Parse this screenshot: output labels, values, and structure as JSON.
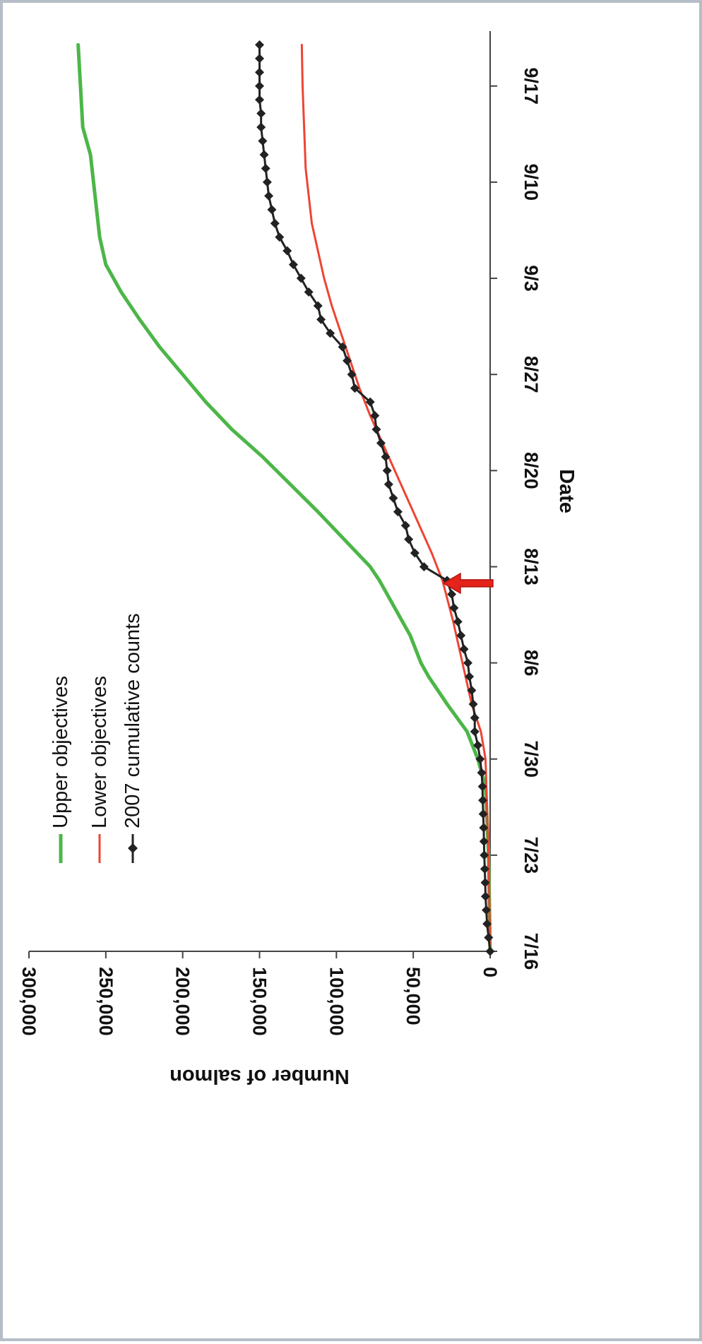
{
  "chart_data": {
    "type": "line",
    "orientation": "rotated-90-clockwise",
    "title": "",
    "xlabel": "Date",
    "ylabel": "Number of salmon",
    "x_ticks": [
      "7/16",
      "7/23",
      "7/30",
      "8/6",
      "8/13",
      "8/20",
      "8/27",
      "9/3",
      "9/10",
      "9/17"
    ],
    "y_ticks": [
      "0",
      "50,000",
      "100,000",
      "150,000",
      "200,000",
      "250,000",
      "300,000"
    ],
    "ylim": [
      0,
      300000
    ],
    "xlim": [
      "7/16",
      "9/21"
    ],
    "grid": false,
    "legend_position": "top-left",
    "annotation": "red arrow marking 8/12",
    "series": [
      {
        "name": "Upper objectives",
        "color": "#4cb648",
        "markers": false,
        "points": [
          [
            "7/16",
            0
          ],
          [
            "7/23",
            1000
          ],
          [
            "7/28",
            3000
          ],
          [
            "7/30",
            8000
          ],
          [
            "8/1",
            15000
          ],
          [
            "8/3",
            28000
          ],
          [
            "8/5",
            40000
          ],
          [
            "8/6",
            45000
          ],
          [
            "8/8",
            52000
          ],
          [
            "8/10",
            62000
          ],
          [
            "8/12",
            72000
          ],
          [
            "8/13",
            78000
          ],
          [
            "8/15",
            95000
          ],
          [
            "8/17",
            112000
          ],
          [
            "8/19",
            130000
          ],
          [
            "8/21",
            148000
          ],
          [
            "8/23",
            168000
          ],
          [
            "8/25",
            185000
          ],
          [
            "8/27",
            200000
          ],
          [
            "8/29",
            215000
          ],
          [
            "8/31",
            228000
          ],
          [
            "9/2",
            240000
          ],
          [
            "9/4",
            250000
          ],
          [
            "9/6",
            254000
          ],
          [
            "9/8",
            256000
          ],
          [
            "9/10",
            258000
          ],
          [
            "9/12",
            260000
          ],
          [
            "9/14",
            265000
          ],
          [
            "9/16",
            266000
          ],
          [
            "9/18",
            267000
          ],
          [
            "9/20",
            268000
          ]
        ]
      },
      {
        "name": "Lower objectives",
        "color": "#ee4433",
        "markers": false,
        "points": [
          [
            "7/16",
            0
          ],
          [
            "7/23",
            1000
          ],
          [
            "7/30",
            3000
          ],
          [
            "8/1",
            6000
          ],
          [
            "8/3",
            12000
          ],
          [
            "8/6",
            18000
          ],
          [
            "8/9",
            24000
          ],
          [
            "8/12",
            31000
          ],
          [
            "8/14",
            38000
          ],
          [
            "8/16",
            46000
          ],
          [
            "8/18",
            54000
          ],
          [
            "8/20",
            62000
          ],
          [
            "8/22",
            70000
          ],
          [
            "8/24",
            78000
          ],
          [
            "8/26",
            85000
          ],
          [
            "8/28",
            91000
          ],
          [
            "8/30",
            97000
          ],
          [
            "9/1",
            103000
          ],
          [
            "9/3",
            108000
          ],
          [
            "9/5",
            112000
          ],
          [
            "9/7",
            116000
          ],
          [
            "9/9",
            118000
          ],
          [
            "9/11",
            120000
          ],
          [
            "9/14",
            121000
          ],
          [
            "9/17",
            122000
          ],
          [
            "9/20",
            122500
          ]
        ]
      },
      {
        "name": "2007 cumulative counts",
        "color": "#222222",
        "markers": true,
        "points": [
          [
            "7/16",
            0
          ],
          [
            "7/17",
            1000
          ],
          [
            "7/18",
            2000
          ],
          [
            "7/19",
            2500
          ],
          [
            "7/20",
            3000
          ],
          [
            "7/21",
            3200
          ],
          [
            "7/22",
            3500
          ],
          [
            "7/23",
            3800
          ],
          [
            "7/24",
            4000
          ],
          [
            "7/25",
            4200
          ],
          [
            "7/26",
            4500
          ],
          [
            "7/27",
            4800
          ],
          [
            "7/28",
            5000
          ],
          [
            "7/29",
            5500
          ],
          [
            "7/30",
            6500
          ],
          [
            "7/31",
            8000
          ],
          [
            "8/1",
            10000
          ],
          [
            "8/2",
            10000
          ],
          [
            "8/3",
            11000
          ],
          [
            "8/4",
            12000
          ],
          [
            "8/5",
            13500
          ],
          [
            "8/6",
            14500
          ],
          [
            "8/7",
            17000
          ],
          [
            "8/8",
            19000
          ],
          [
            "8/9",
            21000
          ],
          [
            "8/10",
            23500
          ],
          [
            "8/11",
            25000
          ],
          [
            "8/12",
            28000
          ],
          [
            "8/13",
            43000
          ],
          [
            "8/14",
            49000
          ],
          [
            "8/15",
            53000
          ],
          [
            "8/16",
            55000
          ],
          [
            "8/17",
            60000
          ],
          [
            "8/18",
            63000
          ],
          [
            "8/19",
            66000
          ],
          [
            "8/20",
            67000
          ],
          [
            "8/21",
            68000
          ],
          [
            "8/22",
            71000
          ],
          [
            "8/23",
            74000
          ],
          [
            "8/24",
            75000
          ],
          [
            "8/25",
            78000
          ],
          [
            "8/26",
            88000
          ],
          [
            "8/27",
            90000
          ],
          [
            "8/28",
            93000
          ],
          [
            "8/29",
            96000
          ],
          [
            "8/30",
            104000
          ],
          [
            "8/31",
            110000
          ],
          [
            "9/1",
            112000
          ],
          [
            "9/2",
            118000
          ],
          [
            "9/3",
            123000
          ],
          [
            "9/4",
            128000
          ],
          [
            "9/5",
            132000
          ],
          [
            "9/6",
            137000
          ],
          [
            "9/7",
            140000
          ],
          [
            "9/8",
            142000
          ],
          [
            "9/9",
            144000
          ],
          [
            "9/10",
            145000
          ],
          [
            "9/11",
            146000
          ],
          [
            "9/12",
            147000
          ],
          [
            "9/13",
            148000
          ],
          [
            "9/14",
            149000
          ],
          [
            "9/15",
            149000
          ],
          [
            "9/16",
            150000
          ],
          [
            "9/17",
            150000
          ],
          [
            "9/18",
            150000
          ],
          [
            "9/19",
            150000
          ],
          [
            "9/20",
            150000
          ]
        ]
      }
    ]
  }
}
